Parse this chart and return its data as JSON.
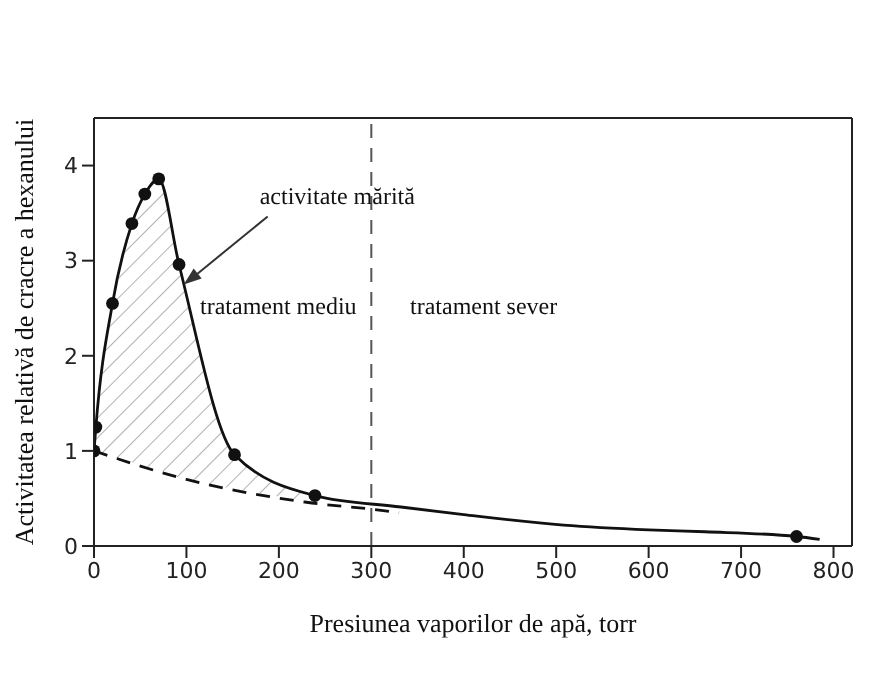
{
  "chart_data": {
    "type": "line",
    "xlabel": "Presiunea vaporilor de apă, torr",
    "ylabel": "Activitatea relativă de cracre a hexanului",
    "xlim": [
      0,
      820
    ],
    "ylim": [
      0,
      4.5
    ],
    "xticks": [
      0,
      100,
      200,
      300,
      400,
      500,
      600,
      700,
      800
    ],
    "yticks": [
      0,
      1,
      2,
      3,
      4
    ],
    "series": [
      {
        "type": "line",
        "color": "#111111",
        "marker": "none",
        "line_style": "solid",
        "x": [
          0,
          2,
          20,
          41,
          55,
          70,
          92,
          152,
          239,
          332,
          400,
          508,
          600,
          661,
          760,
          785
        ],
        "values": [
          1.0,
          1.25,
          2.55,
          3.39,
          3.7,
          3.86,
          2.96,
          0.96,
          0.53,
          0.41,
          0.33,
          0.22,
          0.17,
          0.15,
          0.1,
          0.07
        ],
        "lower": [
          1.0,
          0.99,
          0.94,
          0.88,
          0.84,
          0.8,
          0.72,
          0.6,
          0.46,
          null,
          null,
          null,
          null,
          null,
          null,
          null
        ],
        "upper": [
          1.0,
          1.25,
          2.55,
          3.39,
          3.7,
          3.86,
          2.96,
          0.96,
          0.53,
          null,
          null,
          null,
          null,
          null,
          null,
          null
        ]
      },
      {
        "type": "line",
        "color": "#111111",
        "marker": "none",
        "line_style": "dashed",
        "x": [
          0,
          100,
          230,
          315,
          330
        ],
        "values": [
          1.0,
          0.7,
          0.46,
          0.37,
          0.35
        ]
      },
      {
        "type": "scatter",
        "color": "#111111",
        "marker": "circle",
        "x": [
          0,
          2,
          20,
          41,
          55,
          70,
          92,
          152,
          239,
          760
        ],
        "values": [
          1.0,
          1.25,
          2.55,
          3.39,
          3.7,
          3.86,
          2.96,
          0.96,
          0.53,
          0.1
        ]
      }
    ],
    "ref_lines": [
      {
        "axis": "x",
        "value": 300,
        "line_style": "dashed",
        "color": "#555555"
      }
    ],
    "annotations": [
      {
        "text": "activitate mărită",
        "x": 97,
        "y": 2.75
      },
      "tratament mediu",
      "tratament sever"
    ]
  }
}
